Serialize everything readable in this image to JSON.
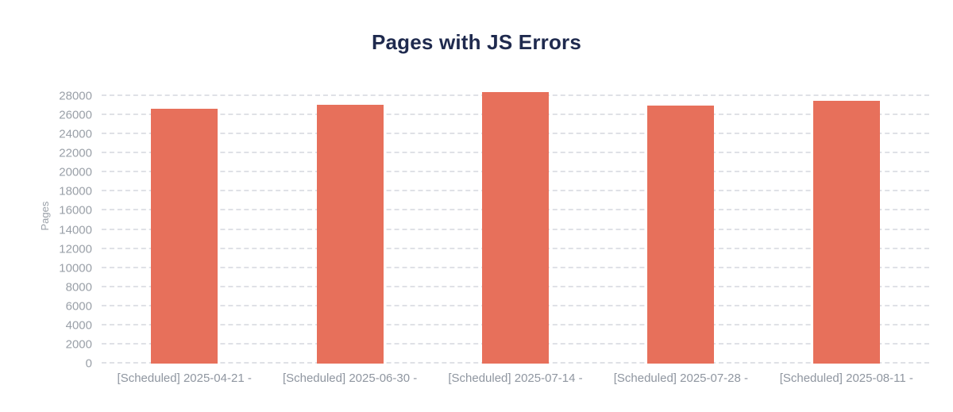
{
  "chart_data": {
    "type": "bar",
    "title": "Pages with JS Errors",
    "xlabel": "",
    "ylabel": "Pages",
    "categories": [
      "[Scheduled] 2025-04-21 -",
      "[Scheduled] 2025-06-30 -",
      "[Scheduled] 2025-07-14 -",
      "[Scheduled] 2025-07-28 -",
      "[Scheduled] 2025-08-11 -"
    ],
    "values": [
      26700,
      27100,
      28400,
      27000,
      27500
    ],
    "ylim": [
      0,
      29000
    ],
    "yticks": [
      0,
      2000,
      4000,
      6000,
      8000,
      10000,
      12000,
      14000,
      16000,
      18000,
      20000,
      22000,
      24000,
      26000,
      28000
    ],
    "grid": "horizontal-dashed",
    "legend": "none",
    "colors": {
      "bar": "#e7705b",
      "title": "#1f2a4e",
      "tick_label": "#9aa0a8",
      "x_label": "#8f96a0",
      "gridline": "#dfe1e6",
      "background": "#ffffff"
    }
  }
}
